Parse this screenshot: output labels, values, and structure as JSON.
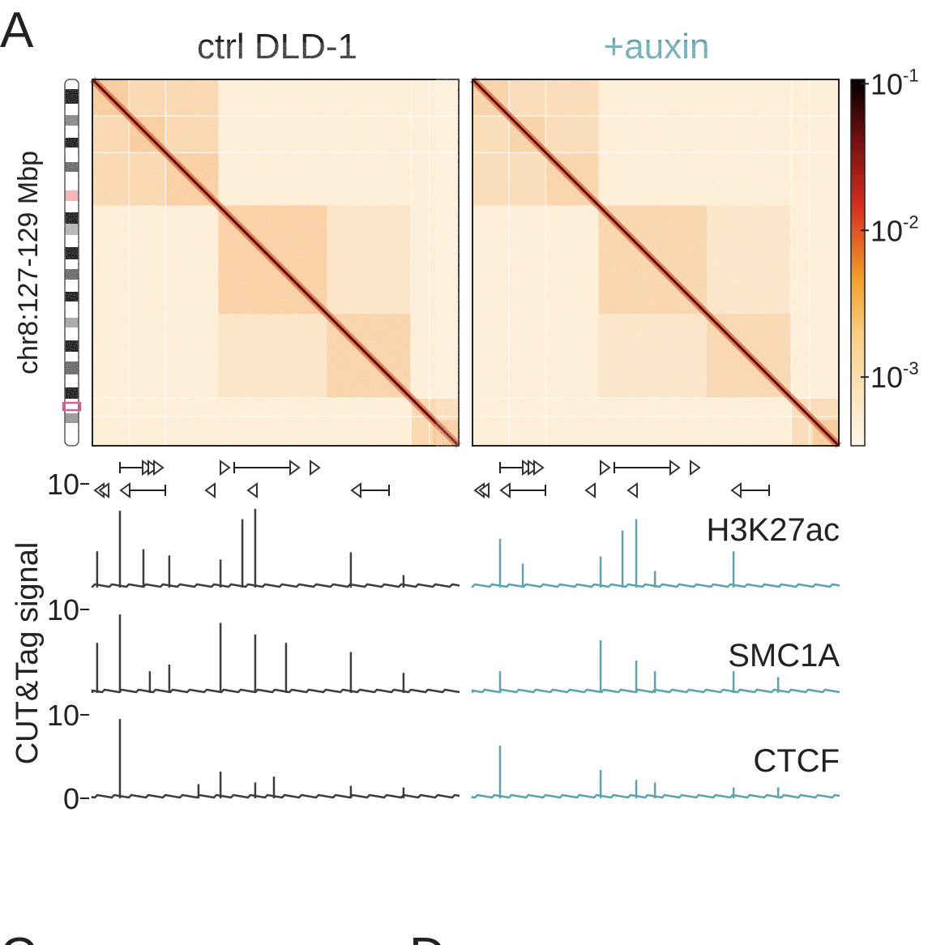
{
  "panel_label": "A",
  "titles": [
    "ctrl DLD-1",
    "+auxin"
  ],
  "hic_axis_label": "chr8:127-129 Mbp",
  "colors": {
    "ctrl": "#3d3d3d",
    "auxin": "#5ba3ae"
  },
  "colorbar": {
    "scale": "log",
    "lim": [
      0.00034,
      0.107
    ],
    "ticks": [
      {
        "value": 0.1,
        "base": "10",
        "exp": "-1"
      },
      {
        "value": 0.01,
        "base": "10",
        "exp": "-2"
      },
      {
        "value": 0.001,
        "base": "10",
        "exp": "-3"
      }
    ]
  },
  "tracks": {
    "ylabel": "CUT&Tag signal",
    "xlim": [
      127,
      129
    ],
    "ylim": [
      0,
      10
    ],
    "yticks": [
      0,
      10
    ],
    "series": [
      {
        "name": "H3K27ac",
        "ctrl": {
          "x": [
            127.026,
            127.15,
            127.278,
            127.419,
            127.698,
            127.817,
            127.887,
            128.408,
            128.695
          ],
          "values": [
            3.5,
            7.4,
            3.7,
            3.1,
            2.7,
            6.6,
            7.6,
            3.4,
            1.2
          ]
        },
        "auxin": {
          "x": [
            127.15,
            127.274,
            127.698,
            127.817,
            127.892,
            127.994,
            128.422
          ],
          "values": [
            4.7,
            2.3,
            3.0,
            5.5,
            6.6,
            1.6,
            3.5
          ]
        }
      },
      {
        "name": "SMC1A",
        "ctrl": {
          "x": [
            127.026,
            127.15,
            127.313,
            127.419,
            127.698,
            127.887,
            128.055,
            128.408,
            128.695
          ],
          "values": [
            6.0,
            9.4,
            2.6,
            3.4,
            8.4,
            7.0,
            6.0,
            4.9,
            2.4
          ]
        },
        "auxin": {
          "x": [
            127.15,
            127.698,
            127.892,
            127.994,
            128.422,
            128.665
          ],
          "values": [
            2.6,
            6.3,
            3.9,
            2.6,
            2.6,
            1.9
          ]
        }
      },
      {
        "name": "CTCF",
        "ctrl": {
          "x": [
            127.15,
            127.578,
            127.698,
            127.887,
            127.989,
            128.408,
            128.695
          ],
          "values": [
            9.5,
            1.7,
            3.2,
            1.9,
            2.6,
            1.5,
            1.3
          ]
        },
        "auxin": {
          "x": [
            127.15,
            127.698,
            127.892,
            127.994,
            128.422,
            128.665
          ],
          "values": [
            6.3,
            3.4,
            2.2,
            1.9,
            1.3,
            1.3
          ]
        }
      }
    ]
  },
  "next_panels": [
    "C",
    "D"
  ]
}
